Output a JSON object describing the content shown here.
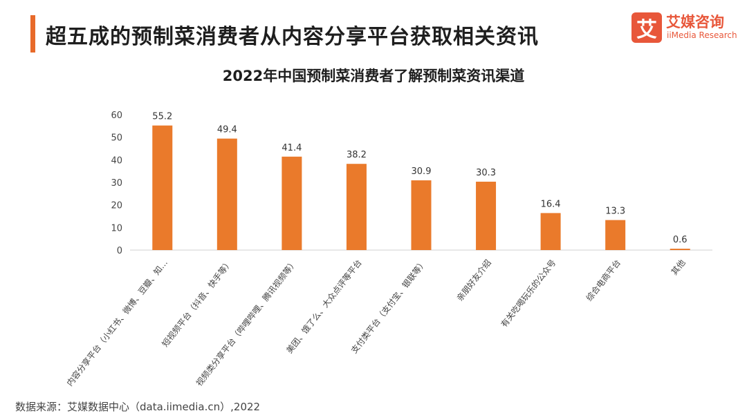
{
  "header": {
    "headline": "超五成的预制菜消费者从内容分享平台获取相关资讯"
  },
  "logo": {
    "mark": "艾",
    "name_cn": "艾媒咨询",
    "name_en": "iiMedia Research"
  },
  "source": "数据来源：艾媒数据中心（data.iimedia.cn）,2022",
  "colors": {
    "accent": "#e86a2a",
    "bar": "#ea7a2b",
    "logo": "#e8573a"
  },
  "chart_data": {
    "type": "bar",
    "title": "2022年中国预制菜消费者了解预制菜资讯渠道",
    "xlabel": "",
    "ylabel": "",
    "ylim": [
      0,
      60
    ],
    "yticks": [
      0,
      10,
      20,
      30,
      40,
      50,
      60
    ],
    "grid": false,
    "categories": [
      "内容分享平台（小红书、微博、豆瓣、知…",
      "短视频平台（抖音、快手等）",
      "视频类分享平台（哔哩哔哩、腾讯视频等）",
      "美团、饿了么、大众点评等平台",
      "支付类平台（支付宝、银联等）",
      "亲朋好友介绍",
      "有关吃喝玩乐的公众号",
      "综合电商平台",
      "其他"
    ],
    "values": [
      55.2,
      49.4,
      41.4,
      38.2,
      30.9,
      30.3,
      16.4,
      13.3,
      0.6
    ],
    "value_labels": [
      "55.2",
      "49.4",
      "41.4",
      "38.2",
      "30.9",
      "30.3",
      "16.4",
      "13.3",
      "0.6"
    ]
  }
}
